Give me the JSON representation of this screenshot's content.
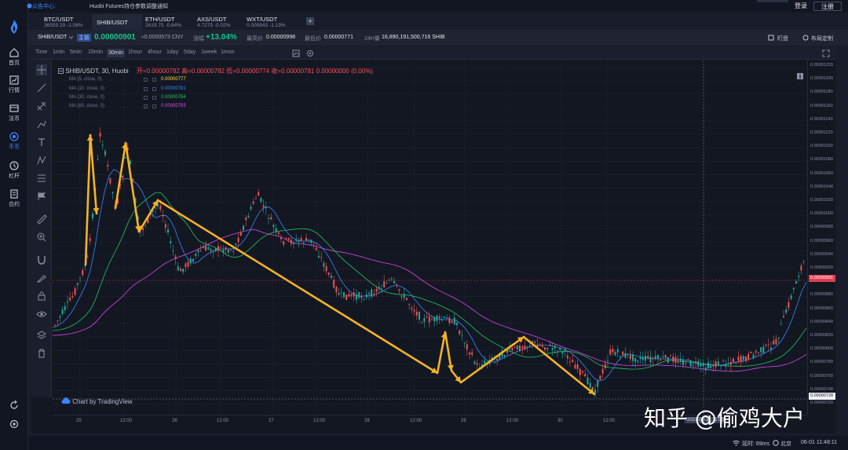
{
  "app": {
    "brand": "Huobi"
  },
  "left_nav": {
    "items": [
      {
        "label": "首页",
        "icon": "home-icon"
      },
      {
        "label": "行情",
        "icon": "chart-icon"
      },
      {
        "label": "法币",
        "icon": "wallet-icon"
      },
      {
        "label": "币币",
        "icon": "exchange-icon",
        "active": true
      },
      {
        "label": "杠杆",
        "icon": "margin-icon"
      },
      {
        "label": "合约",
        "icon": "contract-icon"
      }
    ]
  },
  "topbar": {
    "announcement_label": "公告中心:",
    "announcement_text": "Huobi Futures持仓参数调整通知",
    "login_label": "登录",
    "register_label": "注册"
  },
  "pair_tabs": [
    {
      "name": "BTC/USDT",
      "price": "36559.29",
      "change": "-1.08%",
      "dir": "neg"
    },
    {
      "name": "SHIB/USDT",
      "price": "",
      "change": "",
      "dir": "",
      "active": true
    },
    {
      "name": "ETH/USDT",
      "price": "2619.75",
      "change": "-0.64%",
      "dir": "neg"
    },
    {
      "name": "AXS/USDT",
      "price": "4.7279",
      "change": "-0.02%",
      "dir": "neg"
    },
    {
      "name": "WXT/USDT",
      "price": "0.008943",
      "change": "-1.19%",
      "dir": "neg"
    }
  ],
  "ticker": {
    "symbol": "SHIB/USDT",
    "board": "主板",
    "last_price": "0.00000901",
    "cny_price": "≈0.0000573 CNY",
    "change_label": "涨幅",
    "change_value": "+13.04%",
    "high_label": "最高价",
    "high_value": "0.00000998",
    "low_label": "最低价",
    "low_value": "0.00000771",
    "vol_label": "24H量",
    "vol_value": "16,890,191,500,716 SHIB",
    "pin_label": "盯盘",
    "layout_label": "布局定制"
  },
  "timeframes": [
    "Time",
    "1min",
    "5min",
    "15min",
    "30min",
    "1hour",
    "4hour",
    "1day",
    "5day",
    "1week",
    "1mon"
  ],
  "active_timeframe": "30min",
  "chart_header": {
    "title": "SHIB/USDT, 30, Huobi",
    "ohlc": "开=0.00000782  高=0.00000782  低=0.00000774  收=0.00000781  0.00000000 (0.00%)"
  },
  "ma_lines": [
    {
      "label": "MA (5, close, 0)",
      "value": "0.00000777",
      "color": "#f5e53b"
    },
    {
      "label": "MA (10, close, 0)",
      "value": "0.00000781",
      "color": "#3d85ff"
    },
    {
      "label": "MA (30, close, 0)",
      "value": "0.00000784",
      "color": "#22c55e"
    },
    {
      "label": "MA (60, close, 0)",
      "value": "0.00000793",
      "color": "#d946ef"
    }
  ],
  "y_ticks": [
    "0.00001220",
    "0.00001200",
    "0.00001180",
    "0.00001160",
    "0.00001140",
    "0.00001120",
    "0.00001100",
    "0.00001080",
    "0.00001060",
    "0.00001040",
    "0.00001020",
    "0.00001000",
    "0.00000980",
    "0.00000960",
    "0.00000940",
    "0.00000920",
    "0.00000900",
    "0.00000880",
    "0.00000860",
    "0.00000840",
    "0.00000820",
    "0.00000800",
    "0.00000780",
    "0.00000760",
    "0.00000740",
    "0.00000720"
  ],
  "x_ticks": [
    "25",
    "12:00",
    "26",
    "12:00",
    "27",
    "12:00",
    "28",
    "12:00",
    "29",
    "12:00",
    "30",
    "12:00"
  ],
  "price_tag": "0.00000901",
  "low_tag": "0.00000728",
  "cursor_date": "2021-05-31 11:00",
  "tv_credit": "Chart by TradingView",
  "watermark": "知乎 @偷鸡大户",
  "status": {
    "latency": "延时: 69ms",
    "region": "北京",
    "datetime": "06-01 11:48:11"
  },
  "colors": {
    "up": "#26a69a",
    "down": "#ef5350",
    "annotation": "#f5b325"
  }
}
